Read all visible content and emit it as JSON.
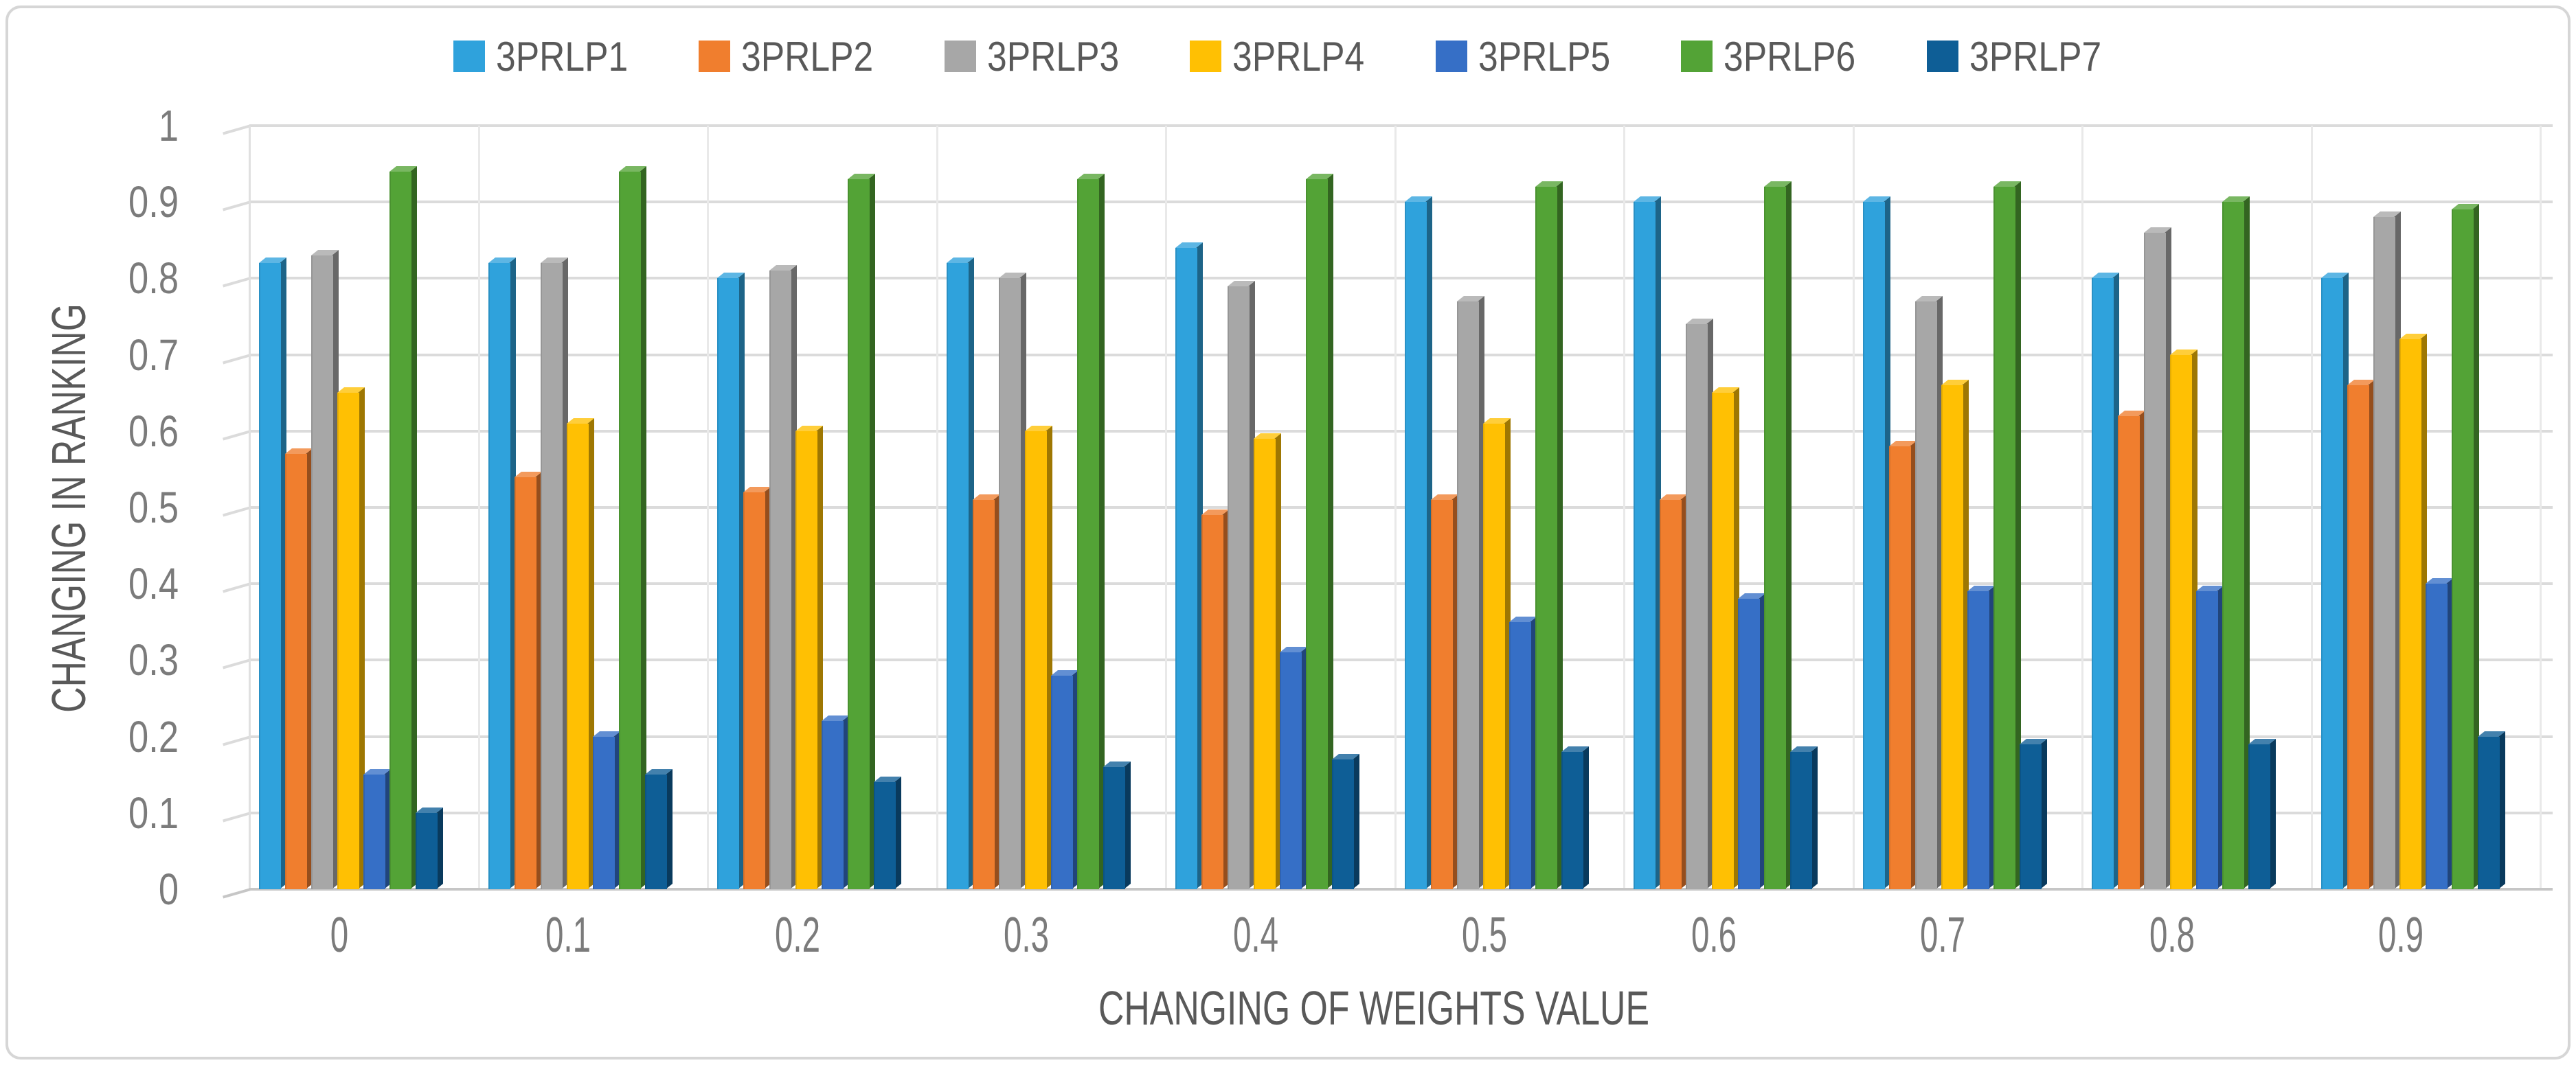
{
  "figure": {
    "kind": "3d-clustered-column-chart"
  },
  "colors": {
    "background": "#FFFFFF",
    "figure_border": "#D6D6D6",
    "gridline": "#DBDBDB",
    "vertical_gridline": "#E9E9E9",
    "baseline": "#C6C6C6",
    "tick_text": "#7B7B7B",
    "title_text": "#595959",
    "legend_text": "#595959"
  },
  "chart_data": {
    "type": "bar",
    "style": "3d-clustered-column",
    "title": "",
    "xlabel": "CHANGING OF WEIGHTS VALUE",
    "ylabel": "CHANGING IN RANKING",
    "categories": [
      "0",
      "0.1",
      "0.2",
      "0.3",
      "0.4",
      "0.5",
      "0.6",
      "0.7",
      "0.8",
      "0.9"
    ],
    "ylim": [
      0,
      1
    ],
    "ytick_step": 0.1,
    "ytick_labels": [
      "0",
      "0.1",
      "0.2",
      "0.3",
      "0.4",
      "0.5",
      "0.6",
      "0.7",
      "0.8",
      "0.9",
      "1"
    ],
    "grid": true,
    "legend_position": "top",
    "series": [
      {
        "name": "3PRLP1",
        "color": "#2FA2DC",
        "values": [
          0.82,
          0.82,
          0.8,
          0.82,
          0.84,
          0.9,
          0.9,
          0.9,
          0.8,
          0.8
        ]
      },
      {
        "name": "3PRLP2",
        "color": "#F07E2E",
        "values": [
          0.57,
          0.54,
          0.52,
          0.51,
          0.49,
          0.51,
          0.51,
          0.58,
          0.62,
          0.66
        ]
      },
      {
        "name": "3PRLP3",
        "color": "#A7A7A7",
        "values": [
          0.83,
          0.82,
          0.81,
          0.8,
          0.79,
          0.77,
          0.74,
          0.77,
          0.86,
          0.88
        ]
      },
      {
        "name": "3PRLP4",
        "color": "#FFC003",
        "values": [
          0.65,
          0.61,
          0.6,
          0.6,
          0.59,
          0.61,
          0.65,
          0.66,
          0.7,
          0.72
        ]
      },
      {
        "name": "3PRLP5",
        "color": "#366FC6",
        "values": [
          0.15,
          0.2,
          0.22,
          0.28,
          0.31,
          0.35,
          0.38,
          0.39,
          0.39,
          0.4
        ]
      },
      {
        "name": "3PRLP6",
        "color": "#53A336",
        "values": [
          0.94,
          0.94,
          0.93,
          0.93,
          0.93,
          0.92,
          0.92,
          0.92,
          0.9,
          0.89
        ]
      },
      {
        "name": "3PRLP7",
        "color": "#0E5E96",
        "values": [
          0.1,
          0.15,
          0.14,
          0.16,
          0.17,
          0.18,
          0.18,
          0.19,
          0.19,
          0.2
        ]
      }
    ]
  }
}
